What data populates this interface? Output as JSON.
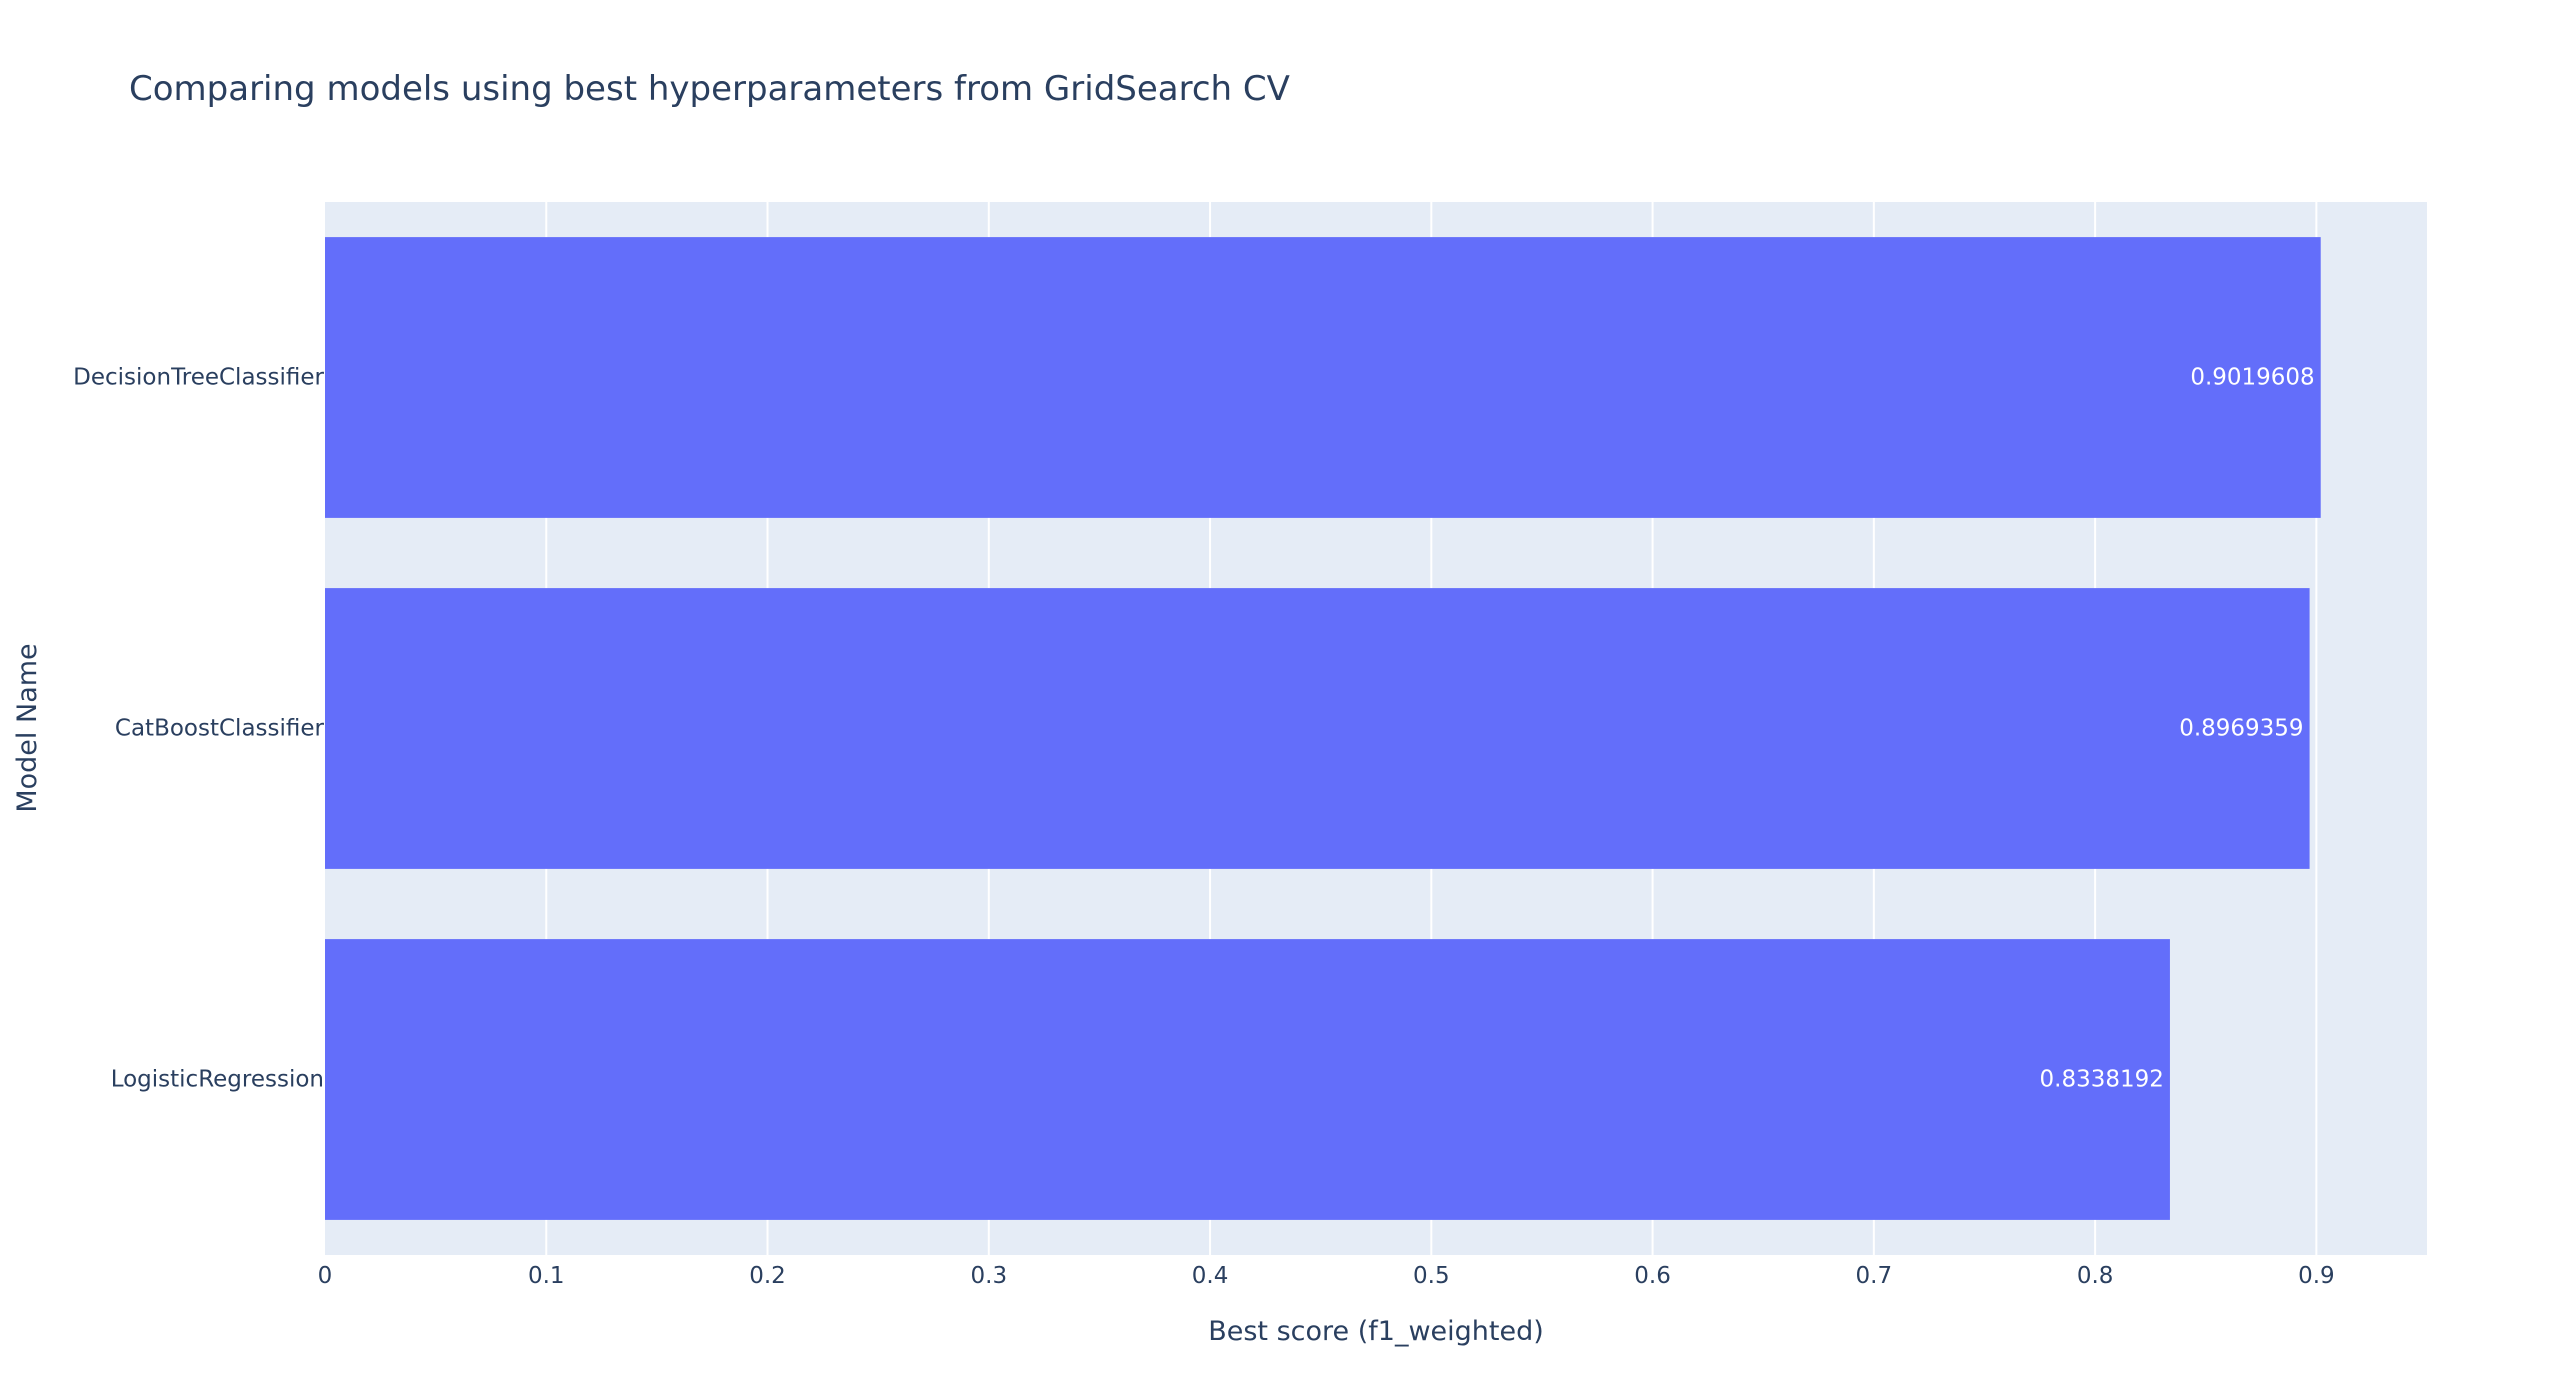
{
  "chart_data": {
    "type": "bar",
    "orientation": "horizontal",
    "title": "Comparing models using best hyperparameters from GridSearch CV",
    "xlabel": "Best score (f1_weighted)",
    "ylabel": "Model Name",
    "categories": [
      "LogisticRegression",
      "CatBoostClassifier",
      "DecisionTreeClassifier"
    ],
    "values": [
      0.8338192,
      0.8969359,
      0.9019608
    ],
    "value_labels": [
      "0.8338192",
      "0.8969359",
      "0.9019608"
    ],
    "xlim": [
      0,
      0.95
    ],
    "x_ticks": [
      0,
      0.1,
      0.2,
      0.3,
      0.4,
      0.5,
      0.6,
      0.7,
      0.8,
      0.9
    ],
    "x_tick_labels": [
      "0",
      "0.1",
      "0.2",
      "0.3",
      "0.4",
      "0.5",
      "0.6",
      "0.7",
      "0.8",
      "0.9"
    ],
    "grid": true,
    "legend": "none",
    "colors": {
      "bar": "#636efa",
      "plot_background": "#e5ecf6",
      "grid": "#ffffff",
      "text": "#2a3f5f",
      "bar_text": "#ffffff"
    }
  }
}
